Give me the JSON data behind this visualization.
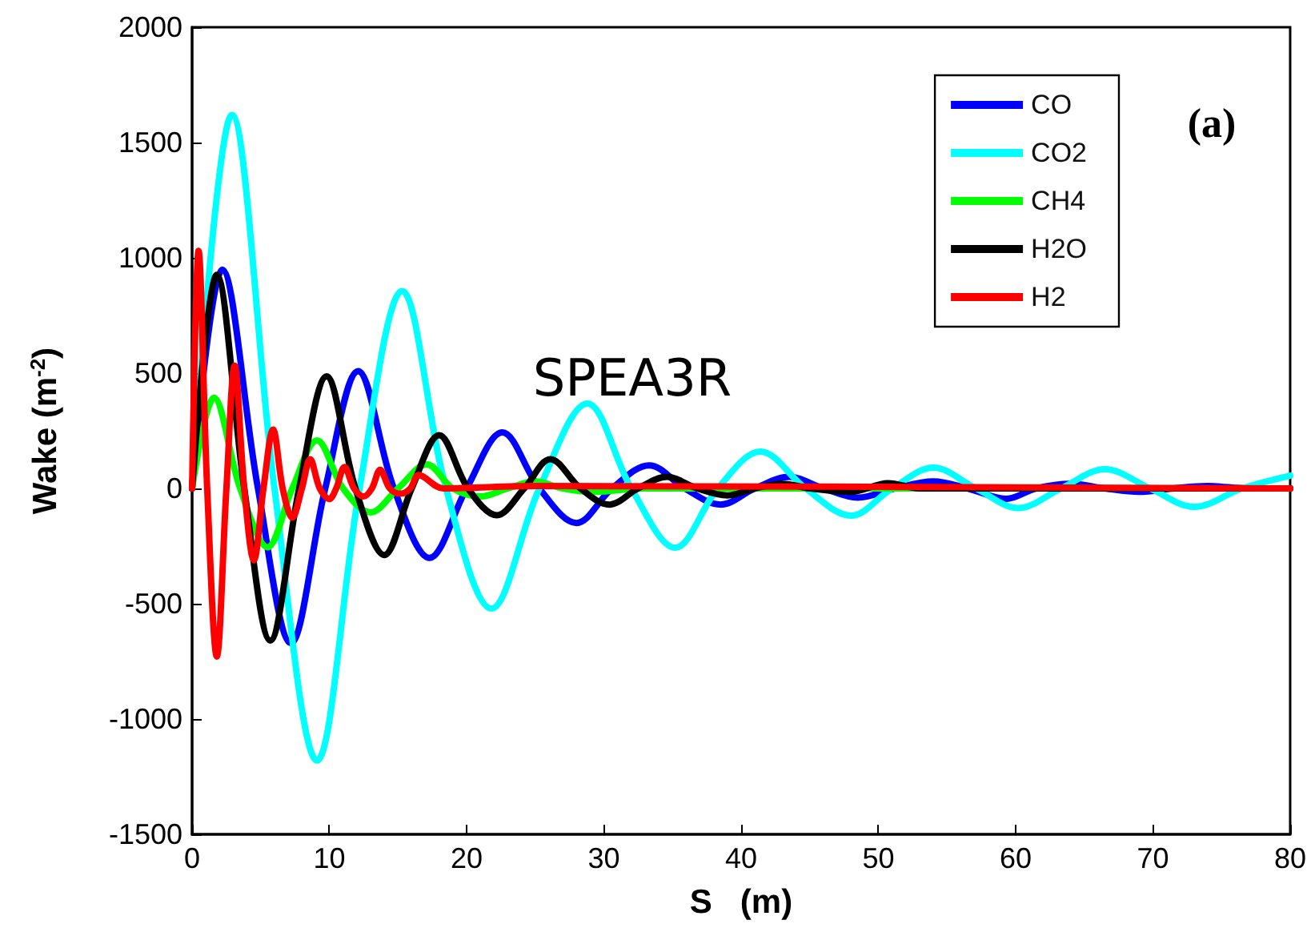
{
  "chart_data": {
    "type": "line",
    "xlabel": "S   (m)",
    "ylabel": "Wake (m$^{-2}$)",
    "xlim": [
      0,
      80
    ],
    "xticks": [
      0,
      10,
      20,
      30,
      40,
      50,
      60,
      70,
      80
    ],
    "ylim": [
      -1500,
      2000
    ],
    "yticks": [
      -1500,
      -1000,
      -500,
      0,
      500,
      1000,
      1500,
      2000
    ],
    "legend": "top right",
    "annotations": [
      "SPEA3R",
      "(a)"
    ],
    "series": [
      {
        "name": "CO",
        "color": "#0000ff",
        "x": [
          0,
          2.2,
          4.8,
          7.2,
          9.7,
          12.1,
          14.7,
          17.3,
          20,
          22.6,
          25.3,
          28,
          30.6,
          33.3,
          35.9,
          38.5,
          41,
          43.5,
          46,
          48.5,
          51.2,
          54,
          56.5,
          59.3,
          61.5,
          64,
          66.5,
          69,
          71.5,
          74,
          77,
          80
        ],
        "values": [
          0,
          949,
          0,
          -671,
          0,
          509,
          0,
          -301,
          0,
          243,
          0,
          -150,
          0,
          100,
          0,
          -70,
          0,
          50,
          0,
          -40,
          0,
          30,
          0,
          -45,
          0,
          20,
          0,
          -15,
          0,
          10,
          0,
          0
        ]
      },
      {
        "name": "CO2",
        "color": "#00ffff",
        "x": [
          0,
          2.9,
          6,
          9.1,
          12.2,
          15.3,
          18.5,
          21.8,
          25.3,
          28.8,
          32,
          35.2,
          38.3,
          41.4,
          44.7,
          48,
          51,
          54,
          57.1,
          60.2,
          63.3,
          66.5,
          69.8,
          73,
          76.5,
          80
        ],
        "values": [
          0,
          1620,
          0,
          -1180,
          0,
          856,
          0,
          -521,
          0,
          368,
          0,
          -257,
          0,
          160,
          0,
          -118,
          0,
          90,
          0,
          -85,
          0,
          83,
          0,
          -80,
          0,
          55
        ]
      },
      {
        "name": "CH4",
        "color": "#00ff00",
        "x": [
          0,
          1.6,
          3.5,
          5.5,
          7.3,
          9.1,
          11,
          13,
          15,
          17.1,
          19,
          21,
          23,
          25,
          27,
          29,
          33,
          80
        ],
        "values": [
          0,
          393,
          0,
          -255,
          0,
          208,
          0,
          -104,
          0,
          104,
          0,
          -35,
          0,
          30,
          0,
          -15,
          0,
          0
        ]
      },
      {
        "name": "H2O",
        "color": "#000000",
        "x": [
          0,
          1.8,
          3.8,
          5.7,
          7.8,
          9.8,
          11.9,
          14,
          16,
          18,
          20.1,
          22.2,
          24.2,
          26.1,
          28.3,
          30.4,
          32.5,
          34.6,
          36.8,
          39,
          41,
          43,
          45,
          48,
          50.7,
          53,
          80
        ],
        "values": [
          0,
          926,
          0,
          -660,
          0,
          486,
          0,
          -289,
          0,
          231,
          0,
          -116,
          0,
          127,
          0,
          -70,
          0,
          50,
          0,
          -30,
          0,
          20,
          0,
          -15,
          23,
          0,
          0
        ]
      },
      {
        "name": "H2",
        "color": "#ff0000",
        "x": [
          0,
          0.47,
          1.1,
          1.8,
          2.5,
          3.1,
          3.8,
          4.5,
          5.2,
          5.9,
          6.6,
          7.3,
          8,
          8.6,
          9.3,
          10,
          10.5,
          11.1,
          11.8,
          12.5,
          13.1,
          13.7,
          14.4,
          15.2,
          15.9,
          16.5,
          18.3,
          25,
          80
        ],
        "values": [
          0,
          1030,
          0,
          -729,
          0,
          532,
          0,
          -312,
          0,
          255,
          0,
          -127,
          0,
          127,
          0,
          -46,
          0,
          93,
          0,
          -35,
          0,
          81,
          0,
          -23,
          0,
          58,
          0,
          10,
          0
        ]
      }
    ]
  }
}
